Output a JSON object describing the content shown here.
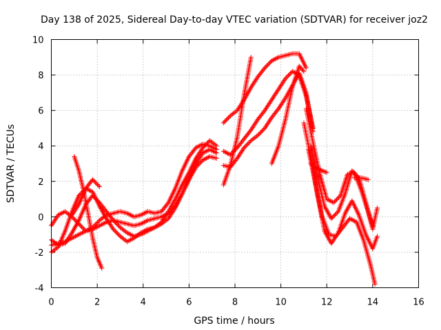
{
  "chart_data": {
    "type": "scatter",
    "title": "Day 138 of 2025, Sidereal Day-to-day VTEC variation (SDTVAR) for receiver joz2",
    "xlabel": "GPS time / hours",
    "ylabel": "SDTVAR / TECUs",
    "xlim": [
      0,
      16
    ],
    "ylim": [
      -4,
      10
    ],
    "xticks": [
      0,
      2,
      4,
      6,
      8,
      10,
      12,
      14,
      16
    ],
    "yticks": [
      -4,
      -2,
      0,
      2,
      4,
      6,
      8,
      10
    ],
    "grid": true,
    "marker": "plus",
    "color": "#ff0000",
    "series": [
      {
        "x": [
          0.0,
          0.3,
          0.6,
          0.9,
          1.2,
          1.5,
          1.8,
          2.1,
          2.4,
          2.7,
          3.0,
          3.3,
          3.6,
          3.9,
          4.2,
          4.5,
          4.8,
          5.1,
          5.4,
          5.7,
          6.0,
          6.3,
          6.6,
          6.9,
          7.2
        ],
        "y": [
          -0.5,
          0.1,
          0.3,
          0.0,
          -0.4,
          -0.8,
          -0.6,
          -0.2,
          0.1,
          0.2,
          0.3,
          0.2,
          0.0,
          0.1,
          0.3,
          0.2,
          0.3,
          0.8,
          1.6,
          2.6,
          3.4,
          3.9,
          4.1,
          4.0,
          3.8
        ]
      },
      {
        "x": [
          0.0,
          0.3,
          0.6,
          0.9,
          1.2,
          1.5,
          1.8,
          2.1,
          2.4,
          2.7,
          3.0,
          3.3,
          3.6,
          3.9,
          4.2,
          4.5,
          4.8,
          5.1,
          5.4,
          5.7,
          6.0,
          6.3,
          6.6,
          6.9,
          7.2
        ],
        "y": [
          -1.6,
          -1.5,
          -1.4,
          -1.2,
          -1.0,
          -0.8,
          -0.7,
          -0.5,
          -0.3,
          -0.2,
          -0.3,
          -0.4,
          -0.5,
          -0.4,
          -0.2,
          -0.1,
          0.0,
          0.2,
          0.6,
          1.3,
          2.1,
          2.8,
          3.2,
          3.4,
          3.3
        ]
      },
      {
        "x": [
          0.0,
          0.3,
          0.6,
          0.9,
          1.2,
          1.5,
          1.8,
          2.1,
          2.4,
          2.7,
          3.0,
          3.3,
          3.6,
          3.9,
          4.2,
          4.5,
          4.8,
          5.1,
          5.4,
          5.7,
          6.0,
          6.3,
          6.6,
          6.9,
          7.2
        ],
        "y": [
          -2.0,
          -1.7,
          -0.8,
          0.3,
          1.2,
          1.6,
          1.4,
          0.6,
          -0.1,
          -0.7,
          -1.1,
          -1.4,
          -1.2,
          -0.9,
          -0.7,
          -0.6,
          -0.3,
          0.3,
          1.0,
          1.8,
          2.5,
          3.3,
          3.9,
          4.3,
          4.0
        ]
      },
      {
        "x": [
          0.0,
          0.3,
          0.6,
          0.9,
          1.2,
          1.5,
          1.8,
          2.1,
          2.4,
          2.7,
          3.0,
          3.3,
          3.6,
          3.9,
          4.2,
          4.5,
          4.8,
          5.1,
          5.4,
          5.7,
          6.0,
          6.3,
          6.6,
          6.9,
          7.2
        ],
        "y": [
          -1.3,
          -1.6,
          -1.5,
          -0.9,
          -0.2,
          0.7,
          1.2,
          0.8,
          0.3,
          -0.2,
          -0.6,
          -0.9,
          -1.1,
          -1.0,
          -0.8,
          -0.6,
          -0.4,
          -0.1,
          0.5,
          1.3,
          2.2,
          3.0,
          3.6,
          3.8,
          3.6
        ]
      },
      {
        "x": [
          1.0,
          1.2,
          1.4,
          1.6,
          1.8,
          2.0,
          2.2
        ],
        "y": [
          3.4,
          2.6,
          1.5,
          0.2,
          -1.2,
          -2.3,
          -2.9
        ]
      },
      {
        "x": [
          0.9,
          1.2,
          1.5,
          1.8,
          2.1
        ],
        "y": [
          0.1,
          0.7,
          1.6,
          2.1,
          1.7
        ]
      },
      {
        "x": [
          7.5,
          7.8,
          8.1,
          8.4,
          8.7,
          9.0,
          9.3,
          9.6,
          9.9,
          10.2,
          10.5,
          10.8,
          11.1,
          11.4
        ],
        "y": [
          3.7,
          3.5,
          3.9,
          4.4,
          4.9,
          5.5,
          6.0,
          6.6,
          7.2,
          7.8,
          8.2,
          8.0,
          6.8,
          5.0
        ]
      },
      {
        "x": [
          7.5,
          7.8,
          8.1,
          8.4,
          8.7,
          9.0,
          9.3,
          9.6,
          9.9,
          10.2,
          10.5,
          10.8,
          11.1,
          11.4
        ],
        "y": [
          2.9,
          2.8,
          3.3,
          3.9,
          4.3,
          4.6,
          5.0,
          5.6,
          6.1,
          6.7,
          7.4,
          8.1,
          7.0,
          4.8
        ]
      },
      {
        "x": [
          7.5,
          7.8,
          8.1,
          8.4,
          8.7,
          9.0,
          9.3,
          9.6,
          9.9,
          10.2,
          10.5,
          10.8,
          11.1
        ],
        "y": [
          5.3,
          5.7,
          6.0,
          6.6,
          7.3,
          7.9,
          8.4,
          8.8,
          9.0,
          9.1,
          9.2,
          9.2,
          8.4
        ]
      },
      {
        "x": [
          7.5,
          7.8,
          8.1,
          8.4,
          8.7
        ],
        "y": [
          1.8,
          2.9,
          4.5,
          6.9,
          9.0
        ]
      },
      {
        "x": [
          9.6,
          9.9,
          10.2,
          10.5,
          10.8,
          11.0
        ],
        "y": [
          3.0,
          4.0,
          5.5,
          7.3,
          8.5,
          8.2
        ]
      },
      {
        "x": [
          11.0,
          11.3,
          11.6,
          11.9,
          12.2,
          12.5,
          12.8,
          13.1,
          13.4,
          13.7,
          14.0,
          14.2
        ],
        "y": [
          5.3,
          3.4,
          1.2,
          -0.8,
          -1.5,
          -0.9,
          0.2,
          0.9,
          0.1,
          -1.0,
          -1.8,
          -1.1
        ]
      },
      {
        "x": [
          11.2,
          11.5,
          11.8,
          12.1,
          12.4,
          12.7,
          13.0,
          13.3,
          13.6,
          13.9,
          14.1
        ],
        "y": [
          3.8,
          1.9,
          0.0,
          -1.0,
          -1.1,
          -0.6,
          -0.1,
          -0.3,
          -1.3,
          -2.7,
          -3.8
        ]
      },
      {
        "x": [
          11.3,
          11.6,
          11.9,
          12.2,
          12.5,
          12.8,
          13.1,
          13.4,
          13.7,
          14.0,
          14.2
        ],
        "y": [
          4.0,
          2.2,
          0.6,
          -0.1,
          0.3,
          1.3,
          2.6,
          2.2,
          0.8,
          -0.7,
          0.5
        ]
      },
      {
        "x": [
          11.1,
          11.4,
          11.7,
          12.0,
          12.3,
          12.6,
          12.9,
          13.2,
          13.5,
          13.8,
          14.0
        ],
        "y": [
          6.1,
          4.2,
          2.4,
          1.0,
          0.8,
          1.2,
          2.4,
          2.5,
          1.5,
          0.3,
          -0.5
        ]
      },
      {
        "x": [
          11.3,
          11.5,
          11.8,
          12.0
        ],
        "y": [
          3.0,
          2.8,
          2.6,
          2.5
        ]
      },
      {
        "x": [
          13.2,
          13.5,
          13.8
        ],
        "y": [
          2.2,
          2.2,
          2.1
        ]
      }
    ]
  }
}
